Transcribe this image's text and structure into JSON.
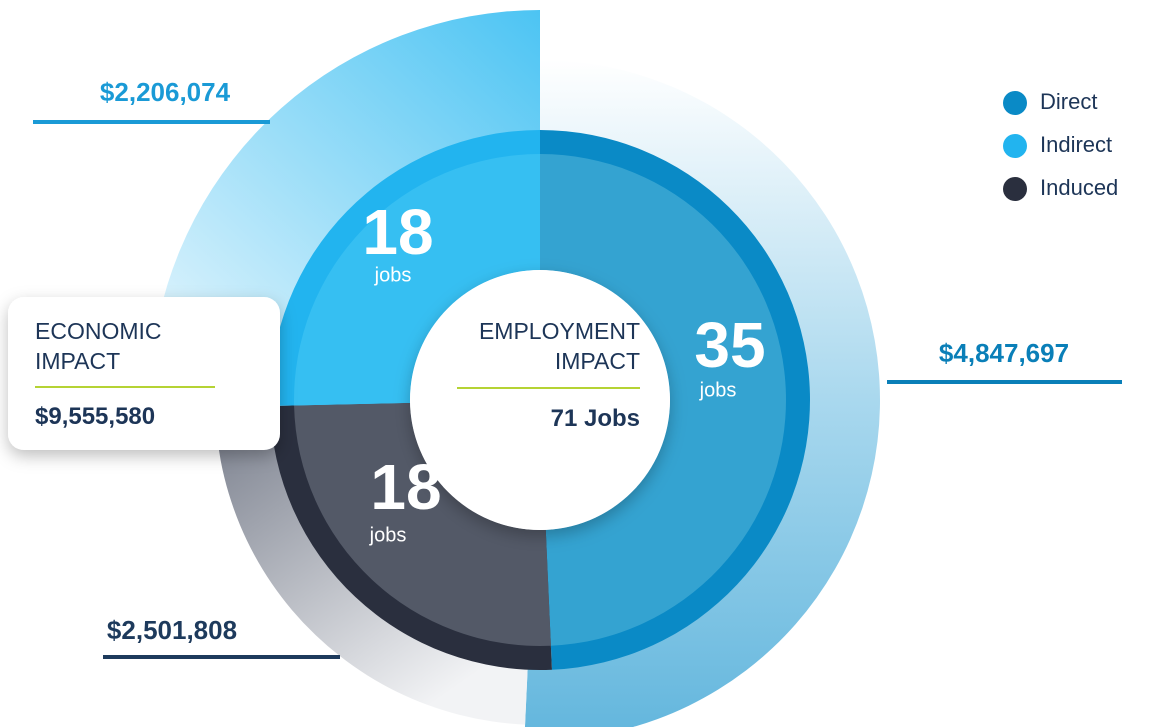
{
  "chart_data": {
    "type": "donut",
    "categories": [
      "Direct",
      "Indirect",
      "Induced"
    ],
    "colors": [
      "#0a8ac6",
      "#22b4ef",
      "#2a2f3e"
    ],
    "jobs": {
      "values": [
        35,
        18,
        18
      ],
      "unit": "jobs"
    },
    "economic": {
      "values": [
        4847697,
        2206074,
        2501808
      ],
      "value_labels": [
        "$4,847,697",
        "$2,206,074",
        "$2,501,808"
      ]
    },
    "employment_total": {
      "title": "EMPLOYMENT IMPACT",
      "label": "71 Jobs"
    },
    "economic_total": {
      "title": "ECONOMIC IMPACT",
      "label": "$9,555,580"
    }
  }
}
